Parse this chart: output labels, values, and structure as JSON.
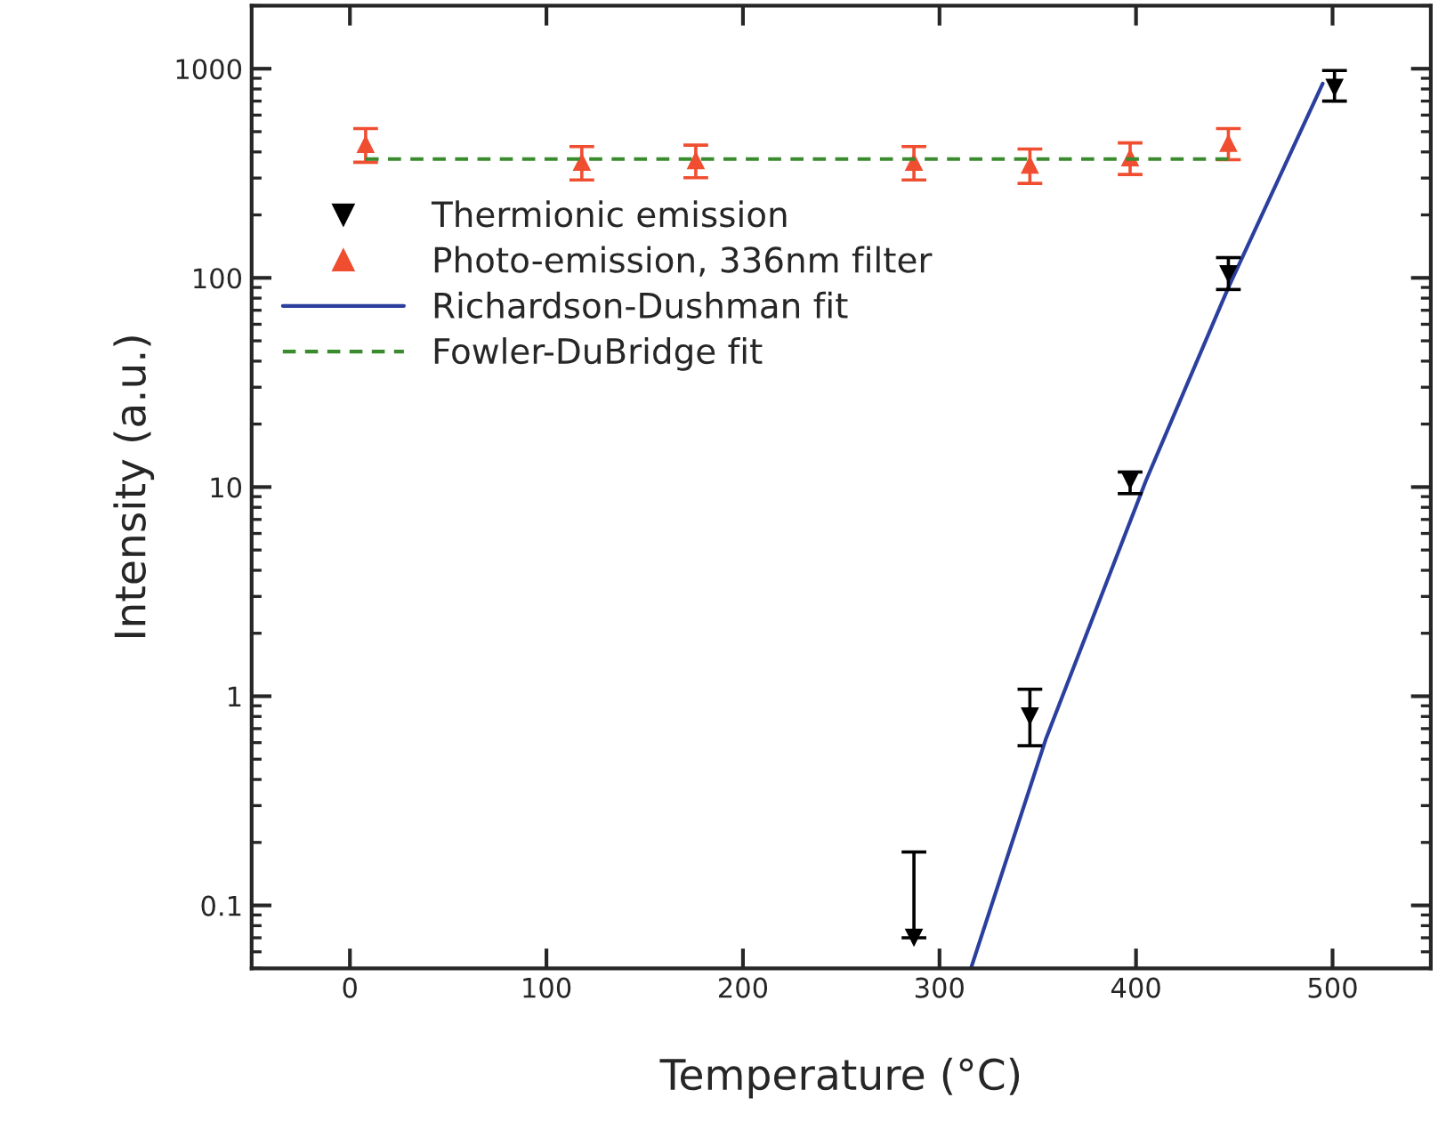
{
  "chart_data": {
    "type": "scatter",
    "xlabel": "Temperature (°C)",
    "ylabel": "Intensity (a.u.)",
    "xlim": [
      -50,
      550
    ],
    "xticks": [
      0,
      100,
      200,
      300,
      400,
      500
    ],
    "ylim": [
      0.05,
      2000
    ],
    "yticks": [
      0.1,
      1,
      10,
      100,
      1000
    ],
    "log": "y",
    "grid": false,
    "legend": "top left",
    "series": [
      {
        "name": "Thermionic emission",
        "marker": "triangle_down",
        "color": "#000000",
        "x": [
          287,
          346,
          397,
          447,
          501
        ],
        "values": [
          0.07,
          0.8,
          10.7,
          104,
          810
        ],
        "errors": [
          [
            0.07,
            0.18
          ],
          [
            0.58,
            1.08
          ],
          [
            9.3,
            11.8
          ],
          [
            88,
            125
          ],
          [
            700,
            980
          ]
        ]
      },
      {
        "name": "Photo-emission, 336nm filter",
        "marker": "triangle",
        "color": "#f04e30",
        "x": [
          8,
          118,
          176,
          287,
          346,
          397,
          447
        ],
        "values": [
          437,
          359,
          366,
          359,
          348,
          377,
          442
        ],
        "errors": [
          80,
          65,
          65,
          65,
          65,
          65,
          75
        ]
      },
      {
        "name": "Richardson-Dushman fit",
        "type": "line",
        "line_style": "solid",
        "color": "#2b3f9e",
        "x": [
          316,
          354,
          405,
          447,
          495
        ],
        "values": [
          0.05,
          0.62,
          10.7,
          90,
          850
        ]
      },
      {
        "name": "Fowler-DuBridge fit",
        "type": "line",
        "line_style": "dashed",
        "color": "#3a8a2e",
        "x": [
          8,
          447
        ],
        "values": [
          370,
          370
        ]
      }
    ]
  }
}
